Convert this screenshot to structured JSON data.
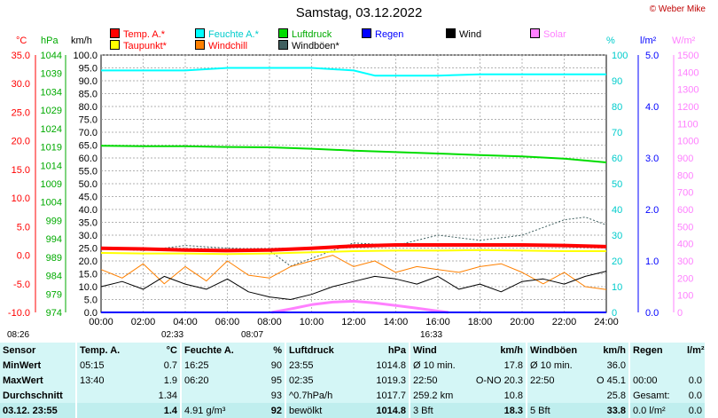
{
  "title": "Samstag, 03.12.2022",
  "copyright": "© Weber Mike",
  "units": {
    "temp": "°C",
    "pressure": "hPa",
    "wind": "km/h",
    "humidity": "%",
    "rain": "l/m²",
    "solar": "W/m²"
  },
  "legend": [
    {
      "label": "Temp. A.*",
      "color": "#ff0000"
    },
    {
      "label": "Feuchte A.*",
      "color": "#00ffff"
    },
    {
      "label": "Luftdruck",
      "color": "#00dd00"
    },
    {
      "label": "Regen",
      "color": "#0000ff"
    },
    {
      "label": "Wind",
      "color": "#000000"
    },
    {
      "label": "Solar",
      "color": "#ff80ff"
    },
    {
      "label": "Taupunkt*",
      "color": "#ffff00"
    },
    {
      "label": "Windchill",
      "color": "#ff8000"
    },
    {
      "label": "Windböen*",
      "color": "#406060"
    }
  ],
  "chart_data": {
    "type": "line",
    "title": "Samstag, 03.12.2022",
    "x_ticks": [
      "00:00",
      "02:00",
      "04:00",
      "06:00",
      "08:00",
      "10:00",
      "12:00",
      "14:00",
      "16:00",
      "18:00",
      "20:00",
      "22:00",
      "24:00"
    ],
    "axes": {
      "temp": {
        "min": -10,
        "max": 35,
        "ticks": [
          "35.0",
          "30.0",
          "25.0",
          "20.0",
          "15.0",
          "10.0",
          "5.0",
          "0.0",
          "-5.0",
          "-10.0"
        ]
      },
      "pressure": {
        "min": 974,
        "max": 1044,
        "ticks": [
          "1044",
          "1039",
          "1034",
          "1029",
          "1024",
          "1019",
          "1014",
          "1009",
          "1004",
          "999",
          "994",
          "989",
          "984",
          "979",
          "974"
        ]
      },
      "wind": {
        "min": 0,
        "max": 100,
        "ticks": [
          "100.0",
          "95.0",
          "90.0",
          "85.0",
          "80.0",
          "75.0",
          "70.0",
          "65.0",
          "60.0",
          "55.0",
          "50.0",
          "45.0",
          "40.0",
          "35.0",
          "30.0",
          "25.0",
          "20.0",
          "15.0",
          "10.0",
          "5.0",
          "0.0"
        ]
      },
      "humidity": {
        "min": 0,
        "max": 100,
        "ticks": [
          "100",
          "90",
          "80",
          "70",
          "60",
          "50",
          "40",
          "30",
          "20",
          "10",
          "0"
        ]
      },
      "rain": {
        "min": 0,
        "max": 5,
        "ticks": [
          "5.0",
          "4.0",
          "3.0",
          "2.0",
          "1.0",
          "0.0"
        ]
      },
      "solar": {
        "min": 0,
        "max": 1500,
        "ticks": [
          "1500",
          "1400",
          "1300",
          "1200",
          "1100",
          "1000",
          "900",
          "800",
          "700",
          "600",
          "500",
          "400",
          "300",
          "200",
          "100",
          "0"
        ]
      }
    },
    "series": [
      {
        "name": "Temp. A.*",
        "axis": "temp",
        "color": "#ff0000",
        "x": [
          0,
          2,
          4,
          6,
          8,
          10,
          12,
          14,
          16,
          18,
          20,
          22,
          24
        ],
        "y": [
          1.2,
          1.1,
          0.9,
          0.8,
          0.9,
          1.2,
          1.6,
          1.8,
          1.8,
          1.8,
          1.8,
          1.7,
          1.5
        ]
      },
      {
        "name": "Feuchte A.*",
        "axis": "humidity",
        "color": "#00ffff",
        "x": [
          0,
          2,
          4,
          6,
          8,
          10,
          12,
          13,
          14,
          16,
          18,
          20,
          22,
          24
        ],
        "y": [
          94,
          94,
          94,
          95,
          95,
          95,
          94,
          92,
          92,
          92,
          92.5,
          92.5,
          92.5,
          92.5
        ]
      },
      {
        "name": "Luftdruck",
        "axis": "pressure",
        "color": "#00dd00",
        "x": [
          0,
          2,
          4,
          6,
          8,
          10,
          12,
          14,
          16,
          18,
          20,
          22,
          24
        ],
        "y": [
          1019.3,
          1019.2,
          1019.2,
          1019.0,
          1018.9,
          1018.5,
          1018.0,
          1017.6,
          1017.2,
          1016.8,
          1016.4,
          1015.8,
          1014.8
        ]
      },
      {
        "name": "Taupunkt*",
        "axis": "temp",
        "color": "#ffff00",
        "x": [
          0,
          2,
          4,
          6,
          8,
          10,
          12,
          14,
          16,
          18,
          20,
          22,
          24
        ],
        "y": [
          0.4,
          0.3,
          0.3,
          0.2,
          0.3,
          0.5,
          0.7,
          0.8,
          0.8,
          0.9,
          0.8,
          0.7,
          0.7
        ]
      },
      {
        "name": "Wind",
        "axis": "wind",
        "color": "#000000",
        "x": [
          0,
          1,
          2,
          3,
          4,
          5,
          6,
          7,
          8,
          9,
          10,
          11,
          12,
          13,
          14,
          15,
          16,
          17,
          18,
          19,
          20,
          21,
          22,
          23,
          24
        ],
        "y": [
          10,
          12,
          9,
          14,
          11,
          9,
          13,
          8,
          6,
          5,
          7,
          10,
          12,
          14,
          13,
          11,
          14,
          9,
          11,
          8,
          12,
          13,
          11,
          14,
          16
        ]
      },
      {
        "name": "Windchill",
        "axis": "temp",
        "color": "#ff8000",
        "x": [
          0,
          1,
          2,
          3,
          4,
          5,
          6,
          7,
          8,
          9,
          10,
          11,
          12,
          13,
          14,
          15,
          16,
          17,
          18,
          19,
          20,
          21,
          22,
          23,
          24
        ],
        "y": [
          -2.5,
          -4,
          -1.5,
          -5,
          -2,
          -4.5,
          -1,
          -3.5,
          -4,
          -2,
          -1,
          0,
          -2,
          -1,
          -3,
          -2,
          -2.5,
          -3,
          -2,
          -1.5,
          -3,
          -5,
          -3,
          -5.5,
          -6
        ]
      },
      {
        "name": "Windböen*",
        "axis": "wind",
        "color": "#406060",
        "x": [
          0,
          2,
          4,
          6,
          8,
          9,
          10,
          12,
          14,
          16,
          18,
          20,
          21,
          22,
          23,
          24
        ],
        "y": [
          25,
          24,
          26,
          25,
          24,
          18,
          21,
          27,
          26,
          30,
          28,
          30,
          33,
          36,
          37,
          34
        ]
      },
      {
        "name": "Solar",
        "axis": "solar",
        "color": "#ff80ff",
        "x": [
          8.1,
          9,
          10,
          11,
          12,
          13,
          14,
          15,
          16,
          16.5
        ],
        "y": [
          0,
          20,
          45,
          60,
          65,
          55,
          40,
          25,
          8,
          0
        ]
      },
      {
        "name": "Regen",
        "axis": "rain",
        "color": "#0000ff",
        "x": [
          0,
          24
        ],
        "y": [
          0,
          0
        ]
      }
    ]
  },
  "sun": {
    "rise_top": "08:26",
    "moon_set": "02:33",
    "sunrise": "08:07",
    "moon_rise": "16:33"
  },
  "stats": {
    "headers": [
      "Sensor",
      "Temp. A.",
      "°C",
      "Feuchte A.",
      "%",
      "Luftdruck",
      "hPa",
      "Wind",
      "km/h",
      "Windböen",
      "km/h",
      "Regen",
      "l/m²"
    ],
    "rows": [
      [
        "MinWert",
        "05:15",
        "0.7",
        "16:25",
        "90",
        "23:55",
        "1014.8",
        "Ø 10 min.",
        "17.8",
        "Ø 10 min.",
        "36.0",
        "",
        ""
      ],
      [
        "MaxWert",
        "13:40",
        "1.9",
        "06:20",
        "95",
        "02:35",
        "1019.3",
        "22:50",
        "O-NO 20.3",
        "22:50",
        "O 45.1",
        "00:00",
        "0.0"
      ],
      [
        "Durchschnitt",
        "",
        "1.34",
        "",
        "93",
        "^0.7hPa/h",
        "1017.7",
        "259.2 km",
        "10.8",
        "",
        "25.8",
        "Gesamt:",
        "0.0"
      ],
      [
        "03.12. 23:55",
        "",
        "1.4",
        "4.91 g/m³",
        "92",
        "bewölkt",
        "1014.8",
        "3 Bft",
        "18.3",
        "5 Bft",
        "33.8",
        "0.0 l/m²",
        "0.0"
      ]
    ]
  }
}
